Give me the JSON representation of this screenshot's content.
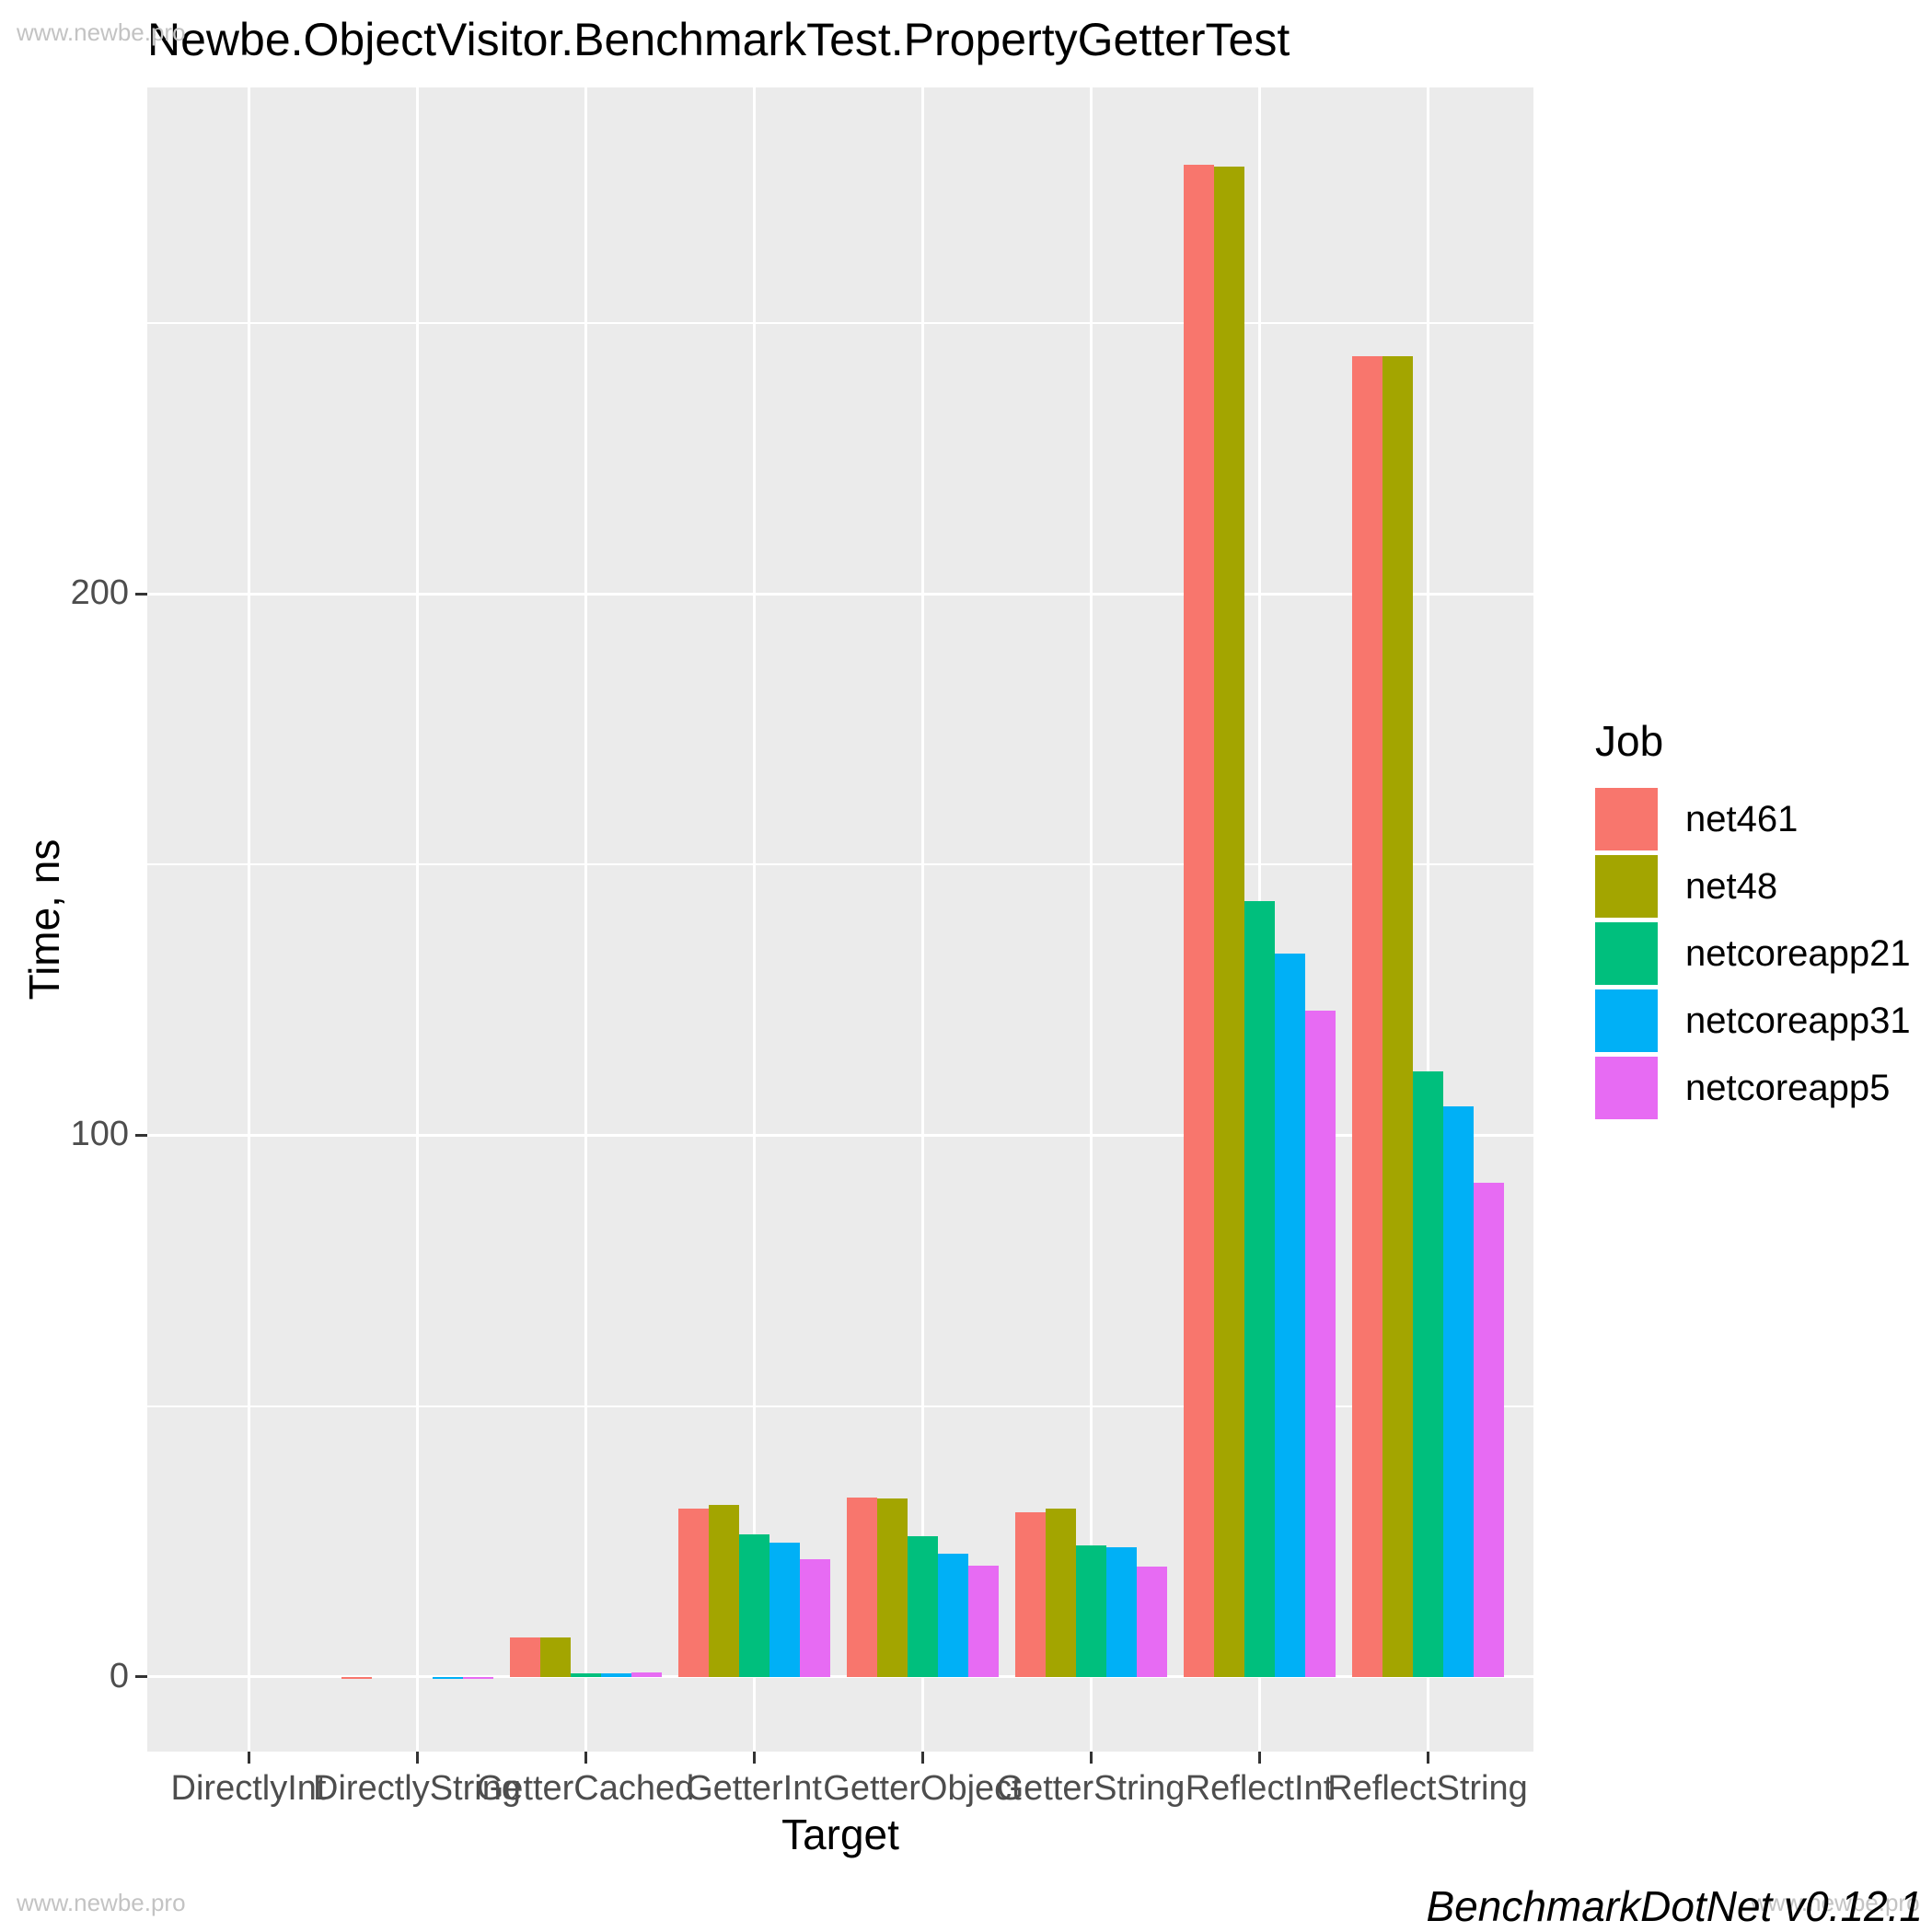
{
  "title": "Newbe.ObjectVisitor.BenchmarkTest.PropertyGetterTest",
  "watermark": "www.newbe.pro",
  "footer": "BenchmarkDotNet v0.12.1",
  "chart_data": {
    "type": "bar",
    "title": "Newbe.ObjectVisitor.BenchmarkTest.PropertyGetterTest",
    "xlabel": "Target",
    "ylabel": "Time, ns",
    "legend_title": "Job",
    "legend_position": "right",
    "grid": true,
    "panel_bg": "#ebebeb",
    "categories": [
      "DirectlyInt",
      "DirectlyString",
      "GetterCached",
      "GetterInt",
      "GetterObject",
      "GetterString",
      "ReflectInt",
      "ReflectString"
    ],
    "series": [
      {
        "name": "net461",
        "color": "#F8766D",
        "values": [
          0,
          -0.3,
          7.2,
          31.1,
          33.1,
          30.4,
          279.3,
          243.9
        ]
      },
      {
        "name": "net48",
        "color": "#A3A500",
        "values": [
          0,
          0,
          7.2,
          31.8,
          32.9,
          31.1,
          278.9,
          243.9
        ]
      },
      {
        "name": "netcoreapp21",
        "color": "#00BF7D",
        "values": [
          0,
          0,
          0.6,
          26.3,
          26.0,
          24.3,
          143.2,
          111.8
        ]
      },
      {
        "name": "netcoreapp31",
        "color": "#00B0F6",
        "values": [
          0,
          -0.3,
          0.6,
          24.8,
          22.7,
          24.0,
          133.6,
          105.3
        ]
      },
      {
        "name": "netcoreapp5",
        "color": "#E76BF3",
        "values": [
          0,
          -0.3,
          0.8,
          21.7,
          20.5,
          20.4,
          123.0,
          91.2
        ]
      }
    ],
    "ylim": [
      -13.8,
      293.5
    ],
    "yticks": [
      0,
      100,
      200
    ],
    "ytick_labels": [
      "0",
      "100",
      "200"
    ],
    "yticks_minor": [
      50,
      150,
      250
    ]
  }
}
